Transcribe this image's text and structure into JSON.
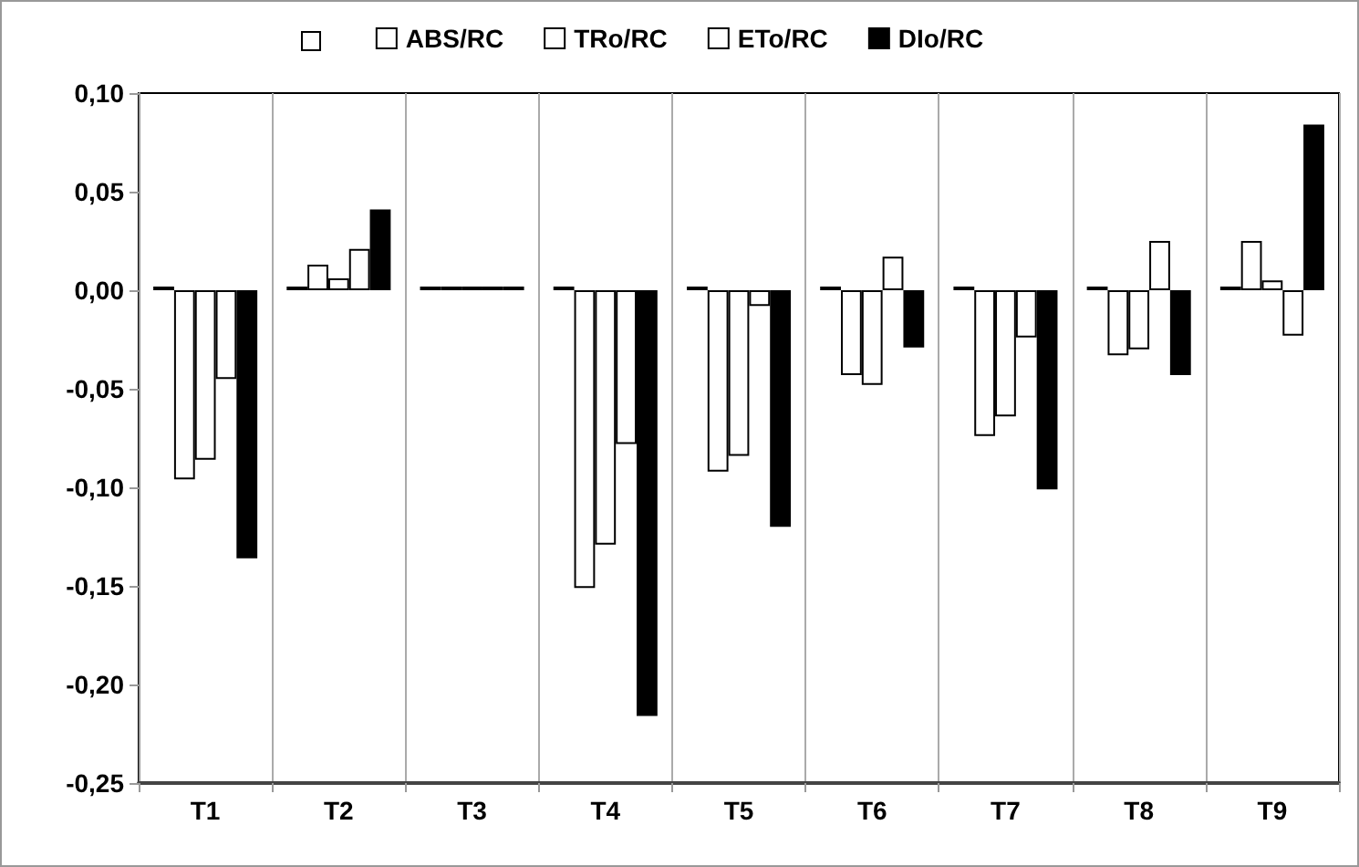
{
  "chart_data": {
    "type": "bar",
    "categories": [
      "T1",
      "T2",
      "T3",
      "T4",
      "T5",
      "T6",
      "T7",
      "T8",
      "T9"
    ],
    "series": [
      {
        "color": "#ffffff",
        "values": [
          0,
          0,
          0,
          0,
          0,
          0,
          0,
          0,
          0
        ]
      },
      {
        "name": "ABS/RC",
        "color": "#ffffff",
        "values": [
          -0.096,
          0.013,
          0,
          -0.151,
          -0.092,
          -0.043,
          -0.074,
          -0.033,
          0.025
        ]
      },
      {
        "name": "TRo/RC",
        "color": "#ffffff",
        "values": [
          -0.086,
          0.006,
          0,
          -0.129,
          -0.084,
          -0.048,
          -0.064,
          -0.03,
          0.005
        ]
      },
      {
        "name": "ETo/RC",
        "color": "#ffffff",
        "values": [
          -0.045,
          0.021,
          0,
          -0.078,
          -0.008,
          0.017,
          -0.024,
          0.025,
          -0.023
        ]
      },
      {
        "name": "DIo/RC",
        "color": "#000000",
        "values": [
          -0.136,
          0.041,
          0,
          -0.216,
          -0.12,
          -0.029,
          -0.101,
          -0.043,
          0.084
        ]
      }
    ],
    "ylim": [
      -0.25,
      0.1
    ],
    "yticks": [
      {
        "value": -0.25,
        "label": "-0,25"
      },
      {
        "value": -0.2,
        "label": "-0,20"
      },
      {
        "value": -0.15,
        "label": "-0,15"
      },
      {
        "value": -0.1,
        "label": "-0,10"
      },
      {
        "value": -0.05,
        "label": "-0,05"
      },
      {
        "value": 0,
        "label": "0,00"
      },
      {
        "value": 0.05,
        "label": "0,05"
      },
      {
        "value": 0.1,
        "label": "0,10"
      }
    ],
    "grid": "x",
    "legend": "top"
  }
}
